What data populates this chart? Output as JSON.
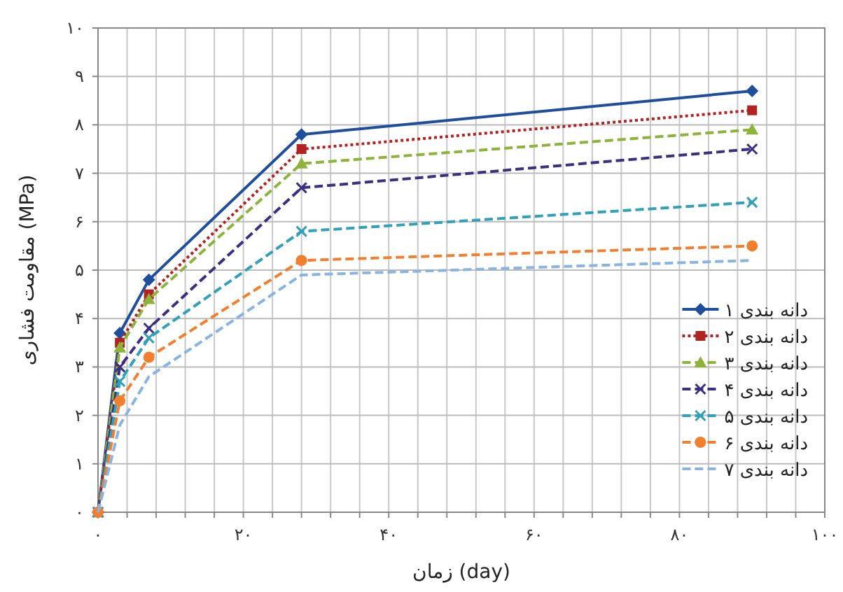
{
  "chart_data": {
    "type": "line",
    "xlabel": "زمان (day)",
    "ylabel": "مقاومت فشاری (MPa)",
    "x": [
      0,
      3,
      7,
      28,
      90
    ],
    "xlim": [
      0,
      100
    ],
    "xticks": [
      {
        "value": 0,
        "label": "۰"
      },
      {
        "value": 4,
        "label": null
      },
      {
        "value": 8,
        "label": null
      },
      {
        "value": 12,
        "label": null
      },
      {
        "value": 16,
        "label": null
      },
      {
        "value": 20,
        "label": "۲۰"
      },
      {
        "value": 24,
        "label": null
      },
      {
        "value": 28,
        "label": null
      },
      {
        "value": 32,
        "label": null
      },
      {
        "value": 36,
        "label": null
      },
      {
        "value": 40,
        "label": "۴۰"
      },
      {
        "value": 44,
        "label": null
      },
      {
        "value": 48,
        "label": null
      },
      {
        "value": 52,
        "label": null
      },
      {
        "value": 56,
        "label": null
      },
      {
        "value": 60,
        "label": "۶۰"
      },
      {
        "value": 64,
        "label": null
      },
      {
        "value": 68,
        "label": null
      },
      {
        "value": 72,
        "label": null
      },
      {
        "value": 76,
        "label": null
      },
      {
        "value": 80,
        "label": "۸۰"
      },
      {
        "value": 84,
        "label": null
      },
      {
        "value": 88,
        "label": null
      },
      {
        "value": 92,
        "label": null
      },
      {
        "value": 96,
        "label": null
      },
      {
        "value": 100,
        "label": "۱۰۰"
      }
    ],
    "ylim": [
      0,
      10
    ],
    "yticks": [
      {
        "value": 0,
        "label": "۰"
      },
      {
        "value": 1,
        "label": "۱"
      },
      {
        "value": 2,
        "label": "۲"
      },
      {
        "value": 3,
        "label": "۳"
      },
      {
        "value": 4,
        "label": "۴"
      },
      {
        "value": 5,
        "label": "۵"
      },
      {
        "value": 6,
        "label": "۶"
      },
      {
        "value": 7,
        "label": "۷"
      },
      {
        "value": 8,
        "label": "۸"
      },
      {
        "value": 9,
        "label": "۹"
      },
      {
        "value": 10,
        "label": "۱۰"
      }
    ],
    "grid": true,
    "legend": "bottom right",
    "series": [
      {
        "name": "دانه بندی ۱",
        "color": "#1f4e9c",
        "marker": "diamond",
        "line_style": "solid",
        "values": [
          0,
          3.7,
          4.8,
          7.8,
          8.7
        ]
      },
      {
        "name": "دانه بندی ۲",
        "color": "#b22222",
        "marker": "square",
        "line_style": "dotted",
        "values": [
          0,
          3.5,
          4.5,
          7.5,
          8.3
        ]
      },
      {
        "name": "دانه بندی ۳",
        "color": "#8db33a",
        "marker": "triangle",
        "line_style": "dashed",
        "values": [
          0,
          3.4,
          4.4,
          7.2,
          7.9
        ]
      },
      {
        "name": "دانه بندی ۴",
        "color": "#3b2f7f",
        "marker": "cross",
        "line_style": "dashed",
        "values": [
          0,
          3.0,
          3.8,
          6.7,
          7.5
        ]
      },
      {
        "name": "دانه بندی ۵",
        "color": "#31a0b8",
        "marker": "cross",
        "line_style": "dashed",
        "values": [
          0,
          2.7,
          3.6,
          5.8,
          6.4
        ]
      },
      {
        "name": "دانه بندی ۶",
        "color": "#f08030",
        "marker": "circle",
        "line_style": "dashed",
        "values": [
          0,
          2.3,
          3.2,
          5.2,
          5.5
        ]
      },
      {
        "name": "دانه بندی ۷",
        "color": "#8ab4e0",
        "marker": "none",
        "line_style": "dashed",
        "values": [
          0,
          1.8,
          2.8,
          4.9,
          5.2
        ]
      }
    ]
  }
}
